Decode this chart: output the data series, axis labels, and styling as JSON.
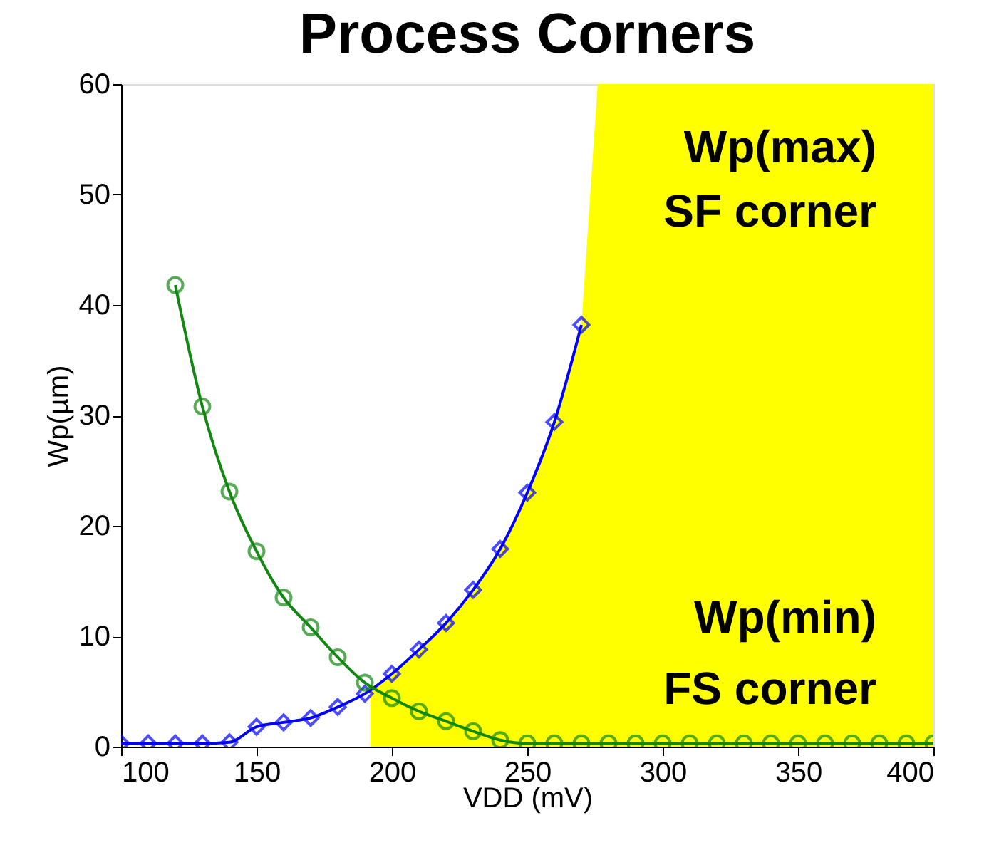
{
  "chart_data": {
    "type": "line",
    "title": "Process Corners",
    "xlabel": "VDD (mV)",
    "ylabel": "Wp(µm)",
    "xlim": [
      100,
      400
    ],
    "ylim": [
      0,
      60
    ],
    "xticks": [
      100,
      150,
      200,
      250,
      300,
      350,
      400
    ],
    "yticks": [
      0,
      10,
      20,
      30,
      40,
      50,
      60
    ],
    "grid": false,
    "annotations": [
      "Wp(max)",
      "SF corner",
      "Wp(min)",
      "FS corner"
    ],
    "series": [
      {
        "type": "area",
        "color": "#ffff00",
        "x": [
          192,
          200,
          210,
          220,
          230,
          240,
          250,
          260,
          270,
          276,
          300,
          350,
          400
        ],
        "values": [
          5.3,
          6.6,
          8.8,
          11.2,
          14.2,
          17.9,
          23.0,
          29.4,
          38.2,
          60,
          60,
          60,
          60
        ]
      },
      {
        "color": "#0000ff",
        "marker": "diamond",
        "x": [
          100,
          110,
          120,
          130,
          140,
          150,
          160,
          170,
          180,
          190,
          200,
          210,
          220,
          230,
          240,
          250,
          260,
          270
        ],
        "values": [
          0.3,
          0.3,
          0.3,
          0.3,
          0.4,
          1.8,
          2.2,
          2.6,
          3.6,
          4.8,
          6.6,
          8.8,
          11.2,
          14.2,
          17.9,
          23.0,
          29.4,
          38.2
        ]
      },
      {
        "color": "#118811",
        "marker": "circle",
        "x": [
          120,
          130,
          140,
          150,
          160,
          170,
          180,
          190,
          200,
          210,
          220,
          230,
          240,
          250,
          260,
          270,
          280,
          290,
          300,
          310,
          320,
          330,
          340,
          350,
          360,
          370,
          380,
          390,
          400
        ],
        "values": [
          41.8,
          30.8,
          23.1,
          17.7,
          13.5,
          10.8,
          8.1,
          5.8,
          4.4,
          3.2,
          2.3,
          1.4,
          0.6,
          0.3,
          0.3,
          0.3,
          0.3,
          0.3,
          0.3,
          0.3,
          0.3,
          0.3,
          0.3,
          0.3,
          0.3,
          0.3,
          0.3,
          0.3,
          0.3
        ]
      }
    ]
  }
}
